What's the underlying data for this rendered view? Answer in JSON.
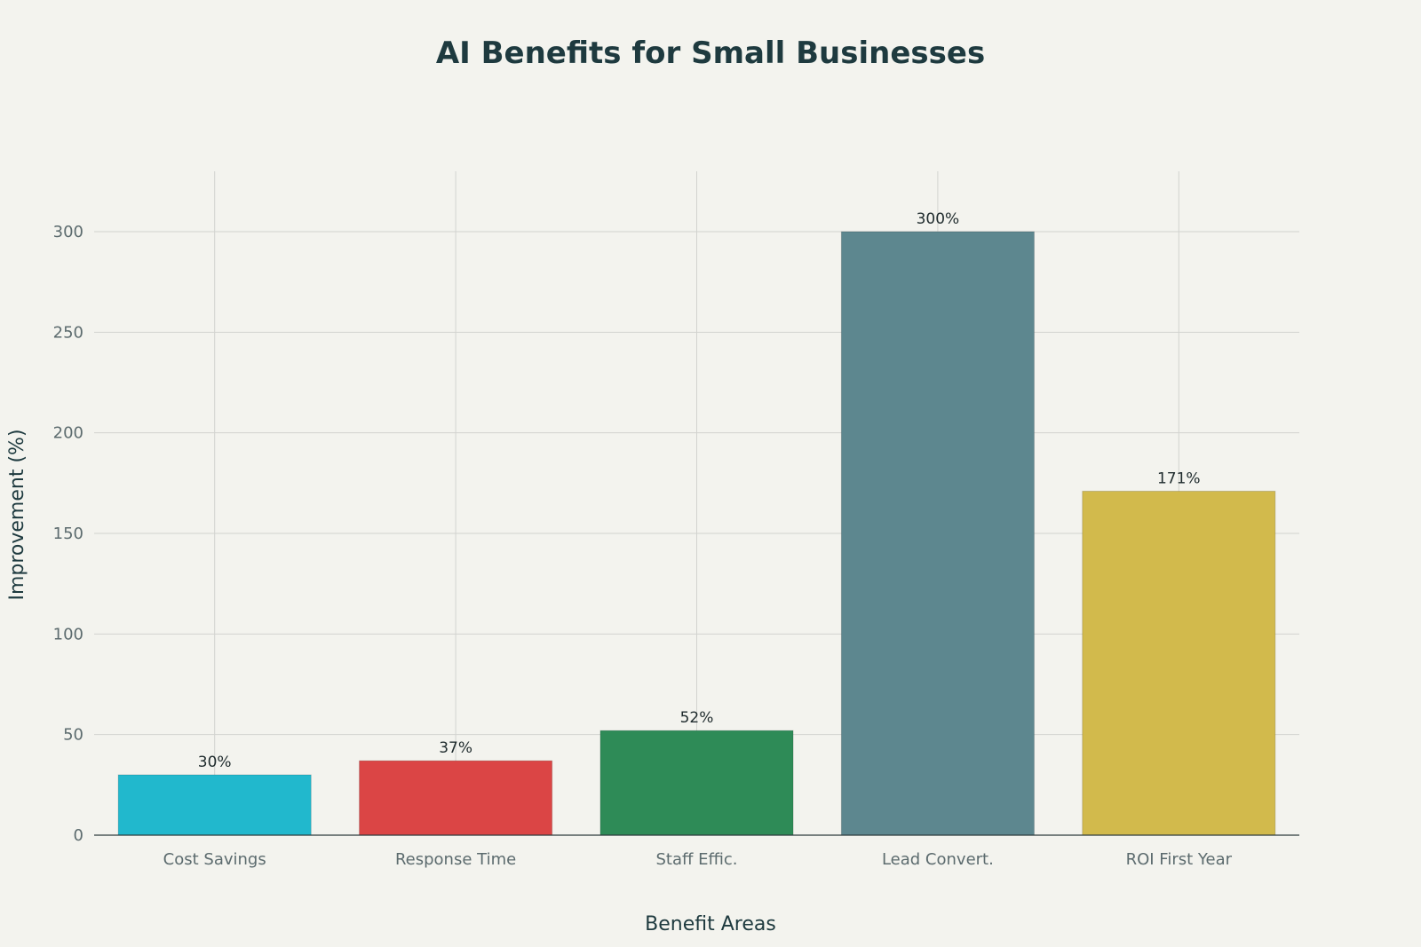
{
  "chart_data": {
    "type": "bar",
    "title": "AI Benefits for Small Businesses",
    "xlabel": "Benefit Areas",
    "ylabel": "Improvement (%)",
    "categories": [
      "Cost Savings",
      "Response Time",
      "Staff Effic.",
      "Lead Convert.",
      "ROI First Year"
    ],
    "values": [
      30,
      37,
      52,
      300,
      171
    ],
    "data_labels": [
      "30%",
      "37%",
      "52%",
      "300%",
      "171%"
    ],
    "colors": [
      "#21b8cd",
      "#db4545",
      "#2e8b57",
      "#5d878f",
      "#d2ba4c"
    ],
    "yticks": [
      0,
      50,
      100,
      150,
      200,
      250,
      300
    ],
    "ylim": [
      0,
      330
    ],
    "grid": true,
    "legend": "none"
  }
}
